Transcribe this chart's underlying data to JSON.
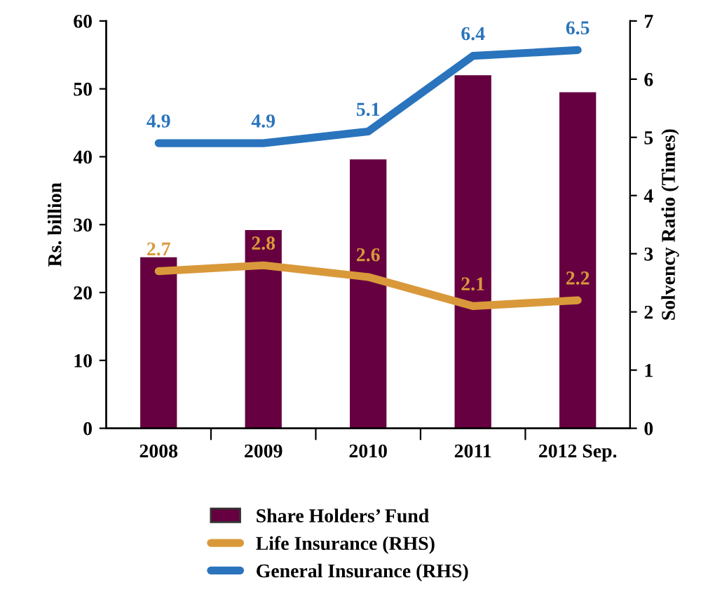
{
  "chart_data": {
    "type": "bar",
    "categories": [
      "2008",
      "2009",
      "2010",
      "2011",
      "2012 Sep."
    ],
    "ylabel": "Rs. billion",
    "y2label": "Solvency Ratio (Times)",
    "ylim": [
      0,
      60
    ],
    "yticks": [
      0,
      10,
      20,
      30,
      40,
      50,
      60
    ],
    "y2lim": [
      0,
      7
    ],
    "y2ticks": [
      0,
      1,
      2,
      3,
      4,
      5,
      6,
      7
    ],
    "grid": false,
    "legend": "bottom",
    "series": [
      {
        "name": "Share Holders’ Fund",
        "color": "#660040",
        "values": [
          25.2,
          29.2,
          39.6,
          52.0,
          49.5
        ]
      },
      {
        "name": "Life Insurance (RHS)",
        "type": "line",
        "axis": "y2",
        "color": "#d9993a",
        "values": [
          2.7,
          2.8,
          2.6,
          2.1,
          2.2
        ],
        "data_labels": true
      },
      {
        "name": "General Insurance (RHS)",
        "type": "line",
        "axis": "y2",
        "color": "#2a74bd",
        "values": [
          4.9,
          4.9,
          5.1,
          6.4,
          6.5
        ],
        "data_labels": true
      }
    ]
  }
}
